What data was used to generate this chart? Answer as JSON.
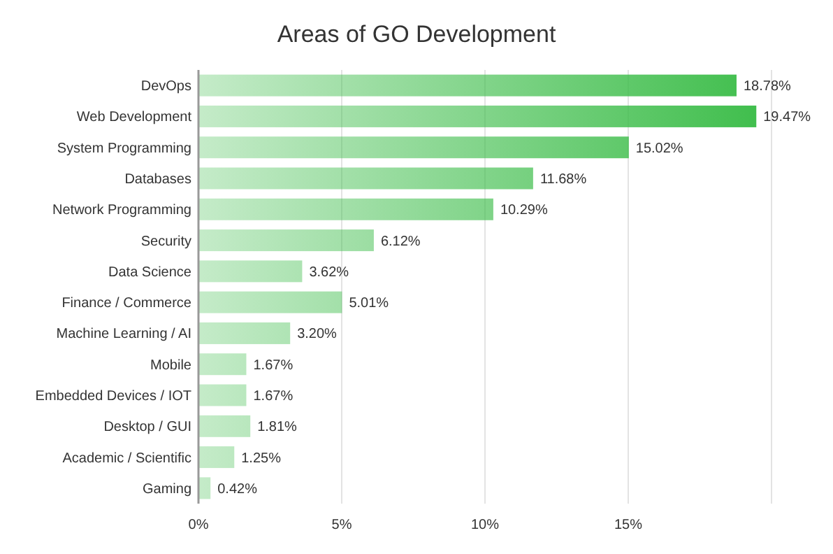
{
  "chart_data": {
    "type": "bar",
    "orientation": "horizontal",
    "title": "Areas of GO Development",
    "categories": [
      "DevOps",
      "Web Development",
      "System Programming",
      "Databases",
      "Network Programming",
      "Security",
      "Data Science",
      "Finance / Commerce",
      "Machine Learning / AI",
      "Mobile",
      "Embedded Devices / IOT",
      "Desktop / GUI",
      "Academic / Scientific",
      "Gaming"
    ],
    "values": [
      18.78,
      19.47,
      15.02,
      11.68,
      10.29,
      6.12,
      3.62,
      5.01,
      3.2,
      1.67,
      1.67,
      1.81,
      1.25,
      0.42
    ],
    "value_labels": [
      "18.78%",
      "19.47%",
      "15.02%",
      "11.68%",
      "10.29%",
      "6.12%",
      "3.62%",
      "5.01%",
      "3.20%",
      "1.67%",
      "1.67%",
      "1.81%",
      "1.25%",
      "0.42%"
    ],
    "color": "#3dbd4a",
    "xlim": [
      0,
      20
    ],
    "xticks": [
      {
        "value": 0,
        "label": "0%"
      },
      {
        "value": 5,
        "label": "5%"
      },
      {
        "value": 10,
        "label": "10%"
      },
      {
        "value": 15,
        "label": "15%"
      },
      {
        "value": 20,
        "label": null
      }
    ],
    "grid": "x"
  }
}
